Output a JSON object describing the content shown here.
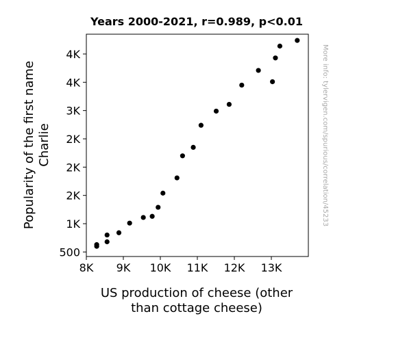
{
  "chart_data": {
    "type": "scatter",
    "title": "Years 2000-2021, r=0.989, p<0.01",
    "xlabel": "US production of cheese (other than cottage cheese)",
    "xlabel_lines": [
      "US production of cheese (other",
      "than cottage cheese)"
    ],
    "ylabel": "Popularity of the first name Charlie",
    "ylabel_lines": [
      "Popularity of the first name",
      "Charlie"
    ],
    "watermark": "More info: tylervigen.com/spurious/correlation/45233",
    "xlim": [
      8000,
      14000
    ],
    "ylim": [
      420,
      4350
    ],
    "x_ticks": [
      {
        "value": 8000,
        "label": "8K"
      },
      {
        "value": 9000,
        "label": "9K"
      },
      {
        "value": 10000,
        "label": "10K"
      },
      {
        "value": 11000,
        "label": "11K"
      },
      {
        "value": 12000,
        "label": "12K"
      },
      {
        "value": 13000,
        "label": "13K"
      }
    ],
    "y_ticks": [
      {
        "value": 500,
        "label": "500"
      },
      {
        "value": 1000,
        "label": "1K"
      },
      {
        "value": 1500,
        "label": "2K"
      },
      {
        "value": 2000,
        "label": "2K"
      },
      {
        "value": 2500,
        "label": "2K"
      },
      {
        "value": 3000,
        "label": "3K"
      },
      {
        "value": 3500,
        "label": "4K"
      },
      {
        "value": 4000,
        "label": "4K"
      }
    ],
    "grid": false,
    "legend": "none",
    "marker_color": "#000000",
    "points": [
      {
        "x": 8280,
        "y": 600
      },
      {
        "x": 8280,
        "y": 630
      },
      {
        "x": 8560,
        "y": 680
      },
      {
        "x": 8560,
        "y": 800
      },
      {
        "x": 8880,
        "y": 840
      },
      {
        "x": 9170,
        "y": 1010
      },
      {
        "x": 9540,
        "y": 1110
      },
      {
        "x": 9780,
        "y": 1130
      },
      {
        "x": 9940,
        "y": 1290
      },
      {
        "x": 10070,
        "y": 1540
      },
      {
        "x": 10450,
        "y": 1810
      },
      {
        "x": 10600,
        "y": 2200
      },
      {
        "x": 10890,
        "y": 2350
      },
      {
        "x": 11100,
        "y": 2740
      },
      {
        "x": 11510,
        "y": 2990
      },
      {
        "x": 11860,
        "y": 3110
      },
      {
        "x": 12200,
        "y": 3450
      },
      {
        "x": 12650,
        "y": 3710
      },
      {
        "x": 13030,
        "y": 3510
      },
      {
        "x": 13110,
        "y": 3930
      },
      {
        "x": 13230,
        "y": 4140
      },
      {
        "x": 13700,
        "y": 4240
      }
    ]
  }
}
